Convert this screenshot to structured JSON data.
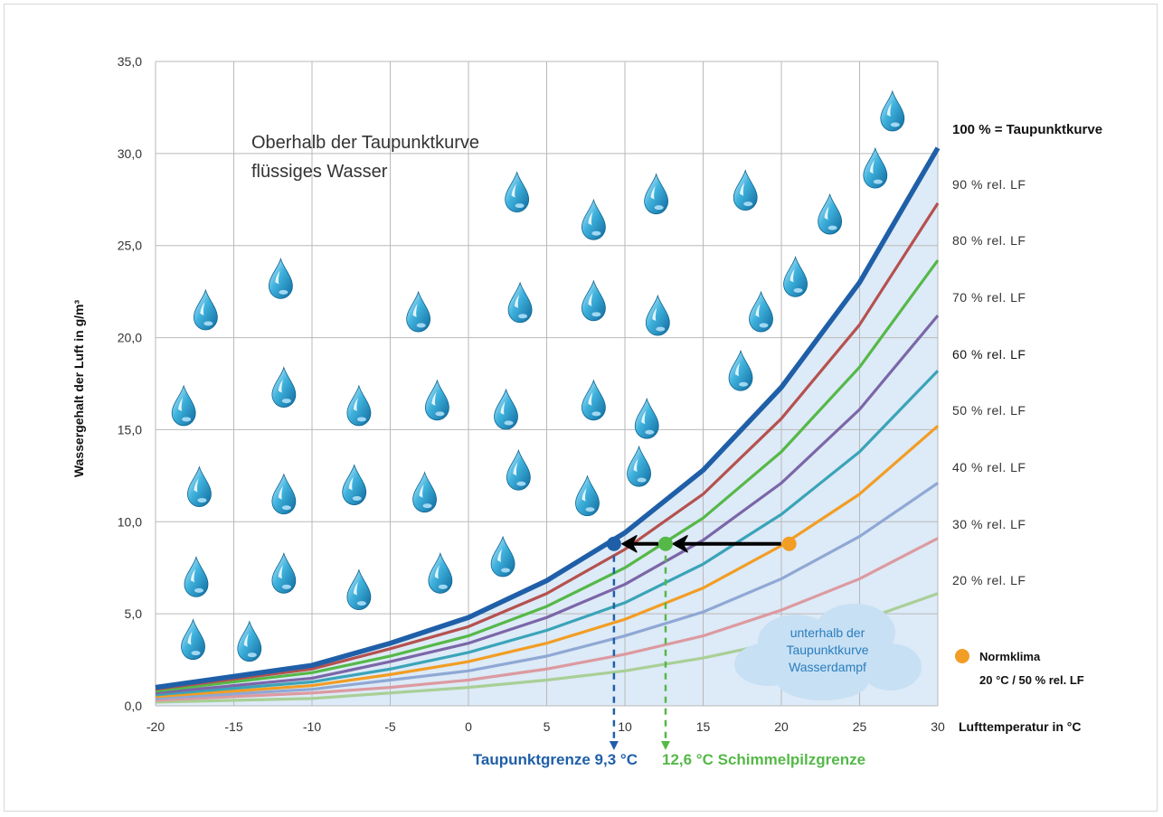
{
  "chart_data": {
    "type": "line",
    "ylabel": "Wassergehalt der Luft in g/m³",
    "xlabel": "Lufttemperatur in °C",
    "xlim": [
      -20,
      30
    ],
    "ylim": [
      0,
      35
    ],
    "xticks": [
      "-20",
      "-15",
      "-10",
      "-5",
      "0",
      "5",
      "10",
      "15",
      "20",
      "25",
      "30"
    ],
    "yticks": [
      "0,0",
      "5,0",
      "10,0",
      "15,0",
      "20,0",
      "25,0",
      "30,0",
      "35,0"
    ],
    "x": [
      -20,
      -10,
      -5,
      0,
      5,
      10,
      15,
      20,
      25,
      30
    ],
    "series": [
      {
        "name": "100 % = Taupunktkurve",
        "color": "#1f5fa8",
        "values": [
          1.0,
          2.2,
          3.4,
          4.8,
          6.8,
          9.4,
          12.8,
          17.3,
          23.0,
          30.3
        ]
      },
      {
        "name": "90 % rel. LF",
        "color": "#b5514f",
        "values": [
          0.9,
          2.0,
          3.1,
          4.3,
          6.1,
          8.5,
          11.5,
          15.6,
          20.7,
          27.3
        ]
      },
      {
        "name": "80 % rel. LF",
        "color": "#55b848",
        "values": [
          0.8,
          1.8,
          2.7,
          3.8,
          5.4,
          7.5,
          10.2,
          13.8,
          18.4,
          24.2
        ]
      },
      {
        "name": "70 % rel. LF",
        "color": "#7b66a8",
        "values": [
          0.7,
          1.5,
          2.4,
          3.4,
          4.8,
          6.6,
          9.0,
          12.1,
          16.1,
          21.2
        ]
      },
      {
        "name": "60 % rel. LF",
        "color": "#3aa4b8",
        "values": [
          0.6,
          1.3,
          2.0,
          2.9,
          4.1,
          5.6,
          7.7,
          10.4,
          13.8,
          18.2
        ]
      },
      {
        "name": "50 % rel. LF",
        "color": "#f29d24",
        "values": [
          0.5,
          1.1,
          1.7,
          2.4,
          3.4,
          4.7,
          6.4,
          8.7,
          11.5,
          15.2
        ]
      },
      {
        "name": "40 % rel. LF",
        "color": "#8fa8d4",
        "values": [
          0.4,
          0.9,
          1.4,
          1.9,
          2.7,
          3.8,
          5.1,
          6.9,
          9.2,
          12.1
        ]
      },
      {
        "name": "30 % rel. LF",
        "color": "#dc9aa0",
        "values": [
          0.3,
          0.7,
          1.0,
          1.4,
          2.0,
          2.8,
          3.8,
          5.2,
          6.9,
          9.1
        ]
      },
      {
        "name": "20 % rel. LF",
        "color": "#a9cf96",
        "values": [
          0.2,
          0.4,
          0.7,
          1.0,
          1.4,
          1.9,
          2.6,
          3.5,
          4.6,
          6.1
        ]
      }
    ],
    "markers": [
      {
        "label": "Normklima",
        "x": 20.5,
        "y": 8.8,
        "color": "#f29d24"
      },
      {
        "label": "Schimmelpilzgrenze",
        "x": 12.6,
        "y": 8.8,
        "color": "#55b848"
      },
      {
        "label": "Taupunktgrenze",
        "x": 9.3,
        "y": 8.8,
        "color": "#1f5fa8"
      }
    ],
    "annotations": {
      "above_line1": "Oberhalb der Taupunktkurve",
      "above_line2": "flüssiges Wasser",
      "below_line1": "unterhalb der",
      "below_line2": "Taupunktkurve",
      "below_line3": "Wasserdampf",
      "norm_title": "Normklima",
      "norm_value": "20 °C / 50 % rel. LF",
      "dew_limit": "Taupunktgrenze 9,3 °C",
      "mold_limit": "12,6 °C Schimmelpilzgrenze"
    },
    "drops": [
      [
        -18.2,
        16.3
      ],
      [
        -17.2,
        11.9
      ],
      [
        -17.4,
        7.0
      ],
      [
        -17.6,
        3.6
      ],
      [
        -16.8,
        21.5
      ],
      [
        -14.0,
        3.5
      ],
      [
        -12.0,
        23.2
      ],
      [
        -11.8,
        17.3
      ],
      [
        -11.8,
        11.5
      ],
      [
        -11.8,
        7.2
      ],
      [
        -7.0,
        16.3
      ],
      [
        -7.3,
        12.0
      ],
      [
        -7.0,
        6.3
      ],
      [
        -3.2,
        21.4
      ],
      [
        -2.0,
        16.6
      ],
      [
        -2.8,
        11.6
      ],
      [
        -1.8,
        7.2
      ],
      [
        2.4,
        16.1
      ],
      [
        2.2,
        8.1
      ],
      [
        3.1,
        27.9
      ],
      [
        3.3,
        21.9
      ],
      [
        3.2,
        12.8
      ],
      [
        8.0,
        26.4
      ],
      [
        8.0,
        22.0
      ],
      [
        8.0,
        16.6
      ],
      [
        7.6,
        11.4
      ],
      [
        12.0,
        27.8
      ],
      [
        12.1,
        21.2
      ],
      [
        11.4,
        15.6
      ],
      [
        10.9,
        13.0
      ],
      [
        17.7,
        28.0
      ],
      [
        18.7,
        21.4
      ],
      [
        17.4,
        18.2
      ],
      [
        20.9,
        23.3
      ],
      [
        23.1,
        26.7
      ],
      [
        26.0,
        29.2
      ],
      [
        27.1,
        32.3
      ]
    ]
  }
}
